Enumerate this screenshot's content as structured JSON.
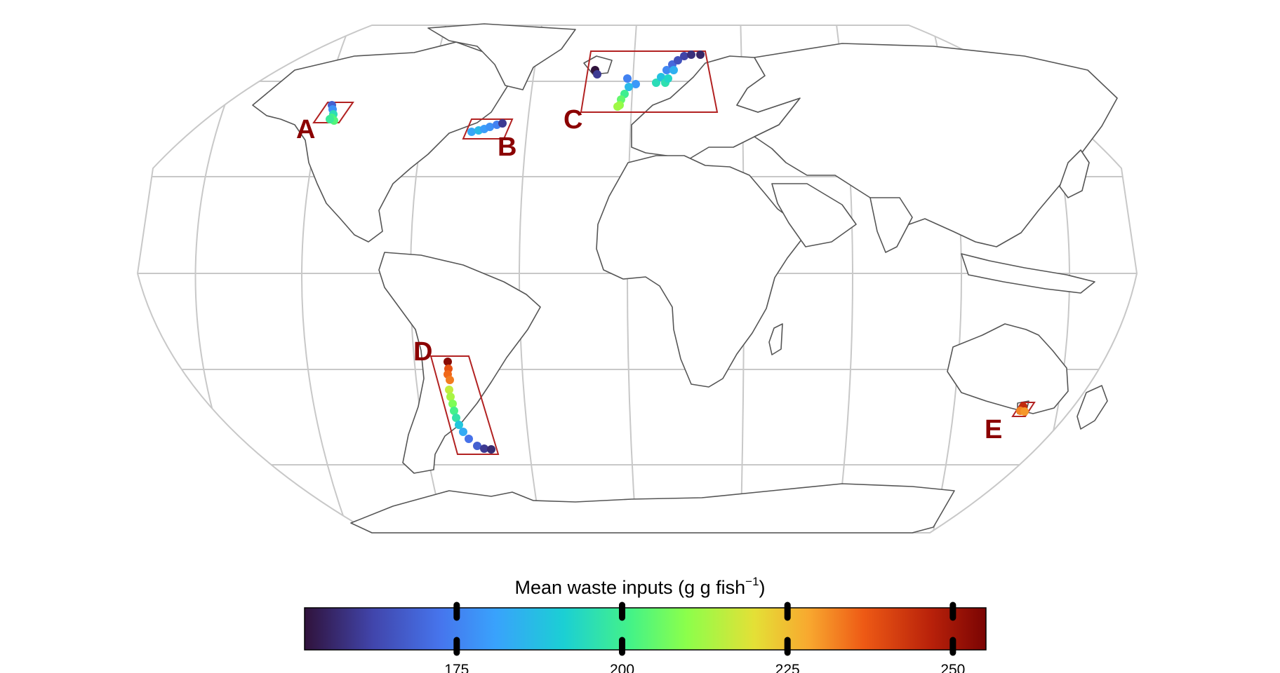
{
  "map": {
    "projection": "Robinson",
    "graticule": true,
    "regions": [
      {
        "label": "A",
        "location": "British Columbia, Canada"
      },
      {
        "label": "B",
        "location": "Atlantic Canada / Maine"
      },
      {
        "label": "C",
        "location": "Norway, Iceland, Faroe Islands, Scotland"
      },
      {
        "label": "D",
        "location": "Southern Chile"
      },
      {
        "label": "E",
        "location": "Tasmania, Australia"
      }
    ]
  },
  "legend": {
    "title": "Mean waste inputs (g g fish",
    "title_sup": "−1",
    "title_close": ")",
    "colormap": "turbo",
    "range": [
      152,
      255
    ],
    "ticks": [
      "175",
      "200",
      "225",
      "250"
    ],
    "tick_values": [
      175,
      200,
      225,
      250
    ]
  },
  "colors": {
    "region_box": "#b22222",
    "region_label": "#8b0000",
    "graticule": "#c8c8c8",
    "coastline": "#555555"
  }
}
